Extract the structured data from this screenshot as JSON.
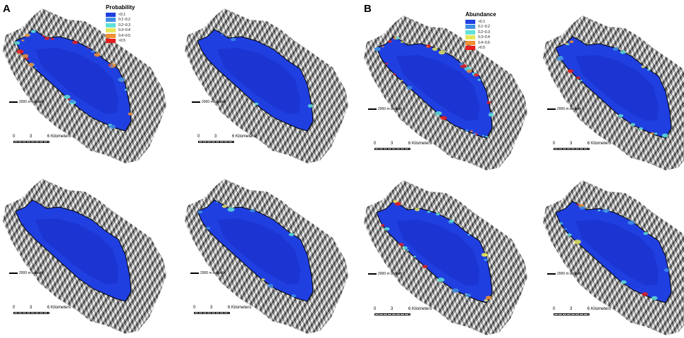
{
  "panels": {
    "a": {
      "letter": "A",
      "legend": {
        "title": "Probability",
        "items": [
          {
            "label": "<0.1",
            "color": "#1f3fe0"
          },
          {
            "label": "0.1~0.2",
            "color": "#3f8fe6"
          },
          {
            "label": "0.2~0.3",
            "color": "#5fe0d8"
          },
          {
            "label": "0.3~0.4",
            "color": "#e6e65a"
          },
          {
            "label": "0.4~0.5",
            "color": "#f09030"
          },
          {
            "label": ">0.5",
            "color": "#e61e1e"
          }
        ]
      }
    },
    "b": {
      "letter": "B",
      "legend": {
        "title": "Abundance",
        "items": [
          {
            "label": "<0.1",
            "color": "#1f3fe0"
          },
          {
            "label": "0.1~0.2",
            "color": "#3f8fe6"
          },
          {
            "label": "0.2~0.3",
            "color": "#5fe0d8"
          },
          {
            "label": "0.3~0.4",
            "color": "#e6e65a"
          },
          {
            "label": "0.4~0.5",
            "color": "#f09030"
          },
          {
            "label": ">0.5",
            "color": "#e61e1e"
          }
        ]
      }
    }
  },
  "isobath_label": "2000 m isobath",
  "scale_bar": {
    "t0": "0",
    "t1": "3",
    "t2": "6 Kilometers"
  },
  "maps": [
    {
      "name": "map-a-top-left",
      "hotspot_level": "high"
    },
    {
      "name": "map-a-top-right",
      "hotspot_level": "very-low"
    },
    {
      "name": "map-a-bottom-left",
      "hotspot_level": "none"
    },
    {
      "name": "map-a-bottom-right",
      "hotspot_level": "low"
    },
    {
      "name": "map-b-top-left",
      "hotspot_level": "high"
    },
    {
      "name": "map-b-top-right",
      "hotspot_level": "medium"
    },
    {
      "name": "map-b-bottom-left",
      "hotspot_level": "medium-high"
    },
    {
      "name": "map-b-bottom-right",
      "hotspot_level": "medium"
    }
  ],
  "colors": {
    "basin": "#1f3fe0",
    "basin_dark": "#1a2fc8",
    "relief": "#8a8a8a",
    "outline": "#000000"
  }
}
